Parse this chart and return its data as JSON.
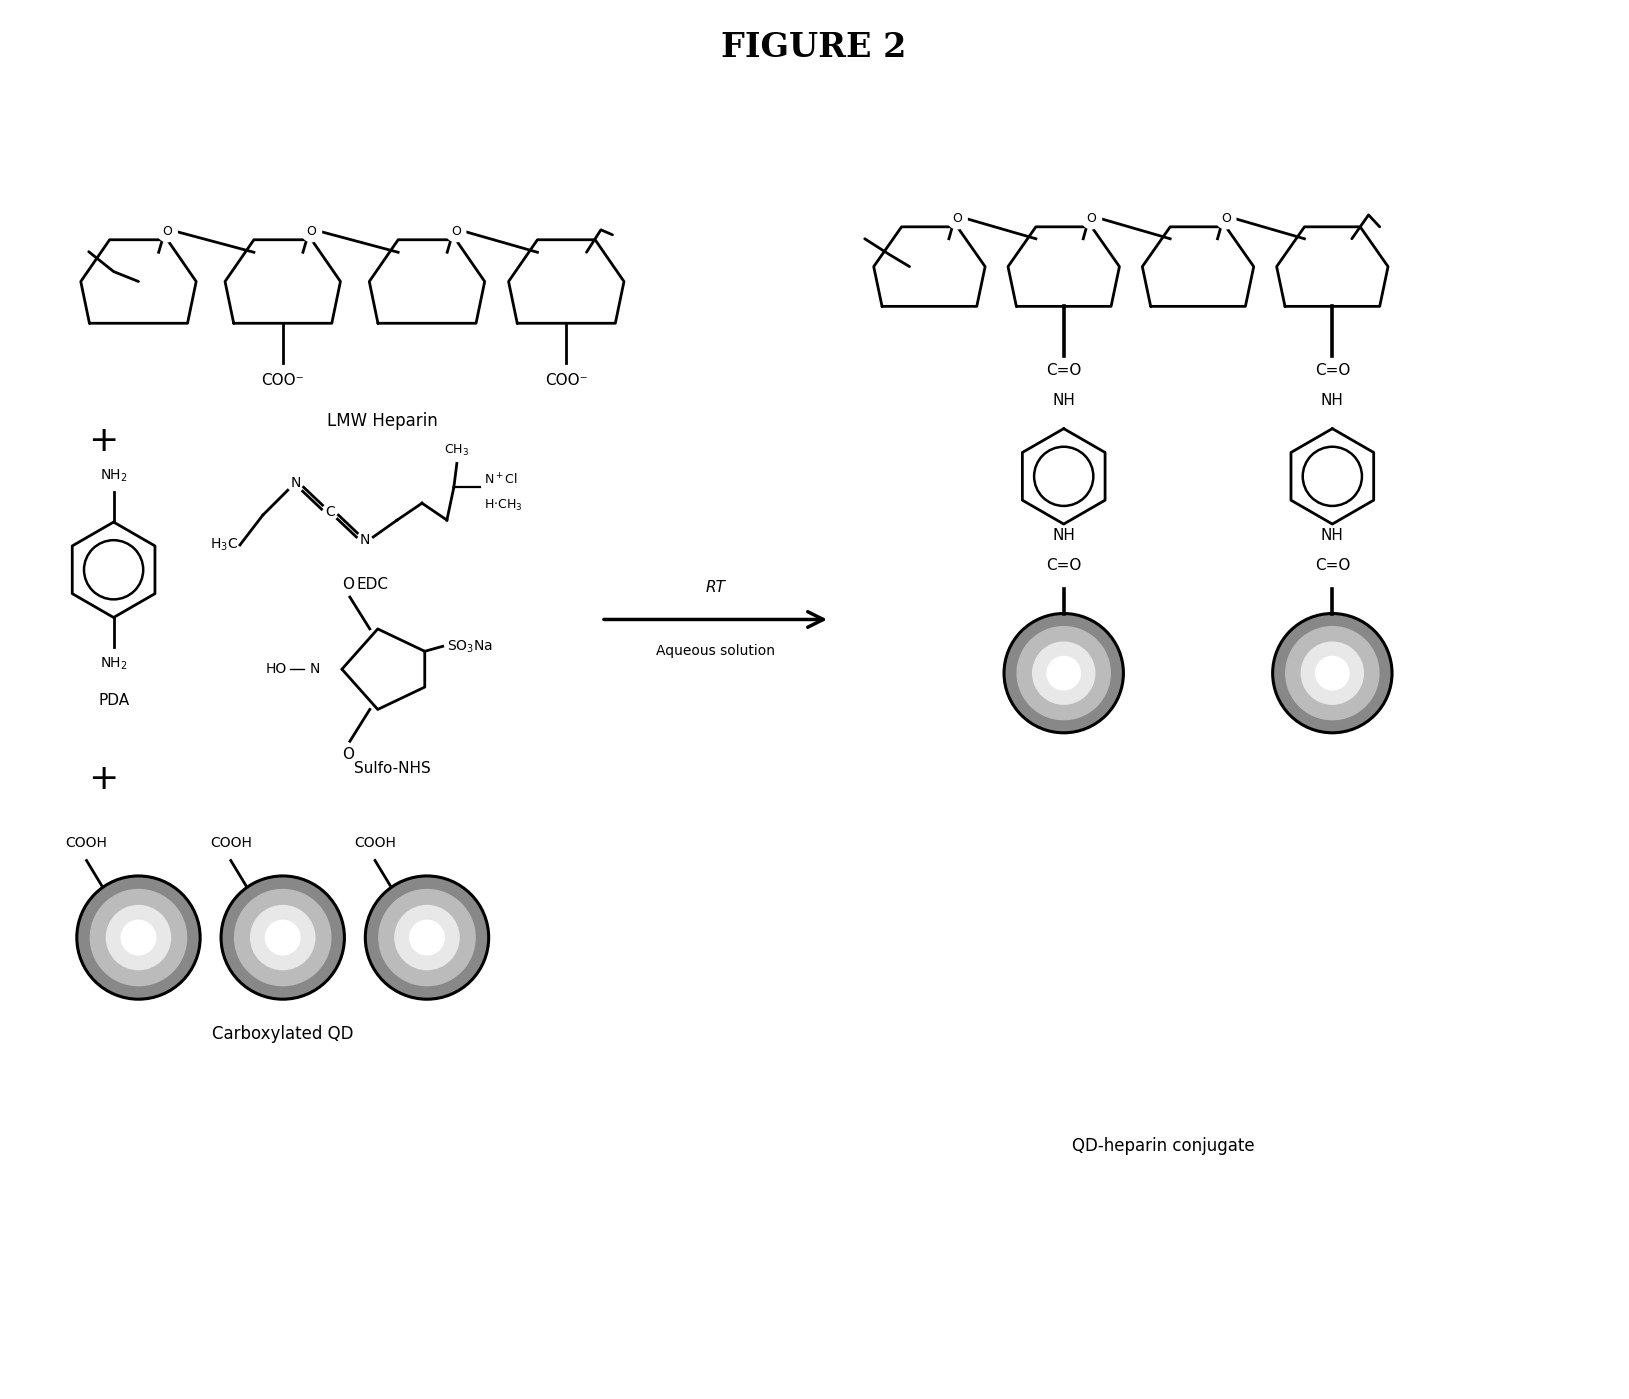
{
  "title": "FIGURE 2",
  "title_fontsize": 24,
  "title_fontweight": "bold",
  "bg_color": "#ffffff",
  "text_color": "#000000",
  "line_color": "#000000",
  "line_width": 2.0,
  "labels": {
    "lmw_heparin": "LMW Heparin",
    "pda": "PDA",
    "edc": "EDC",
    "sulfo_nhs": "Sulfo-NHS",
    "carboxylated_qd": "Carboxylated QD",
    "qd_heparin": "QD-heparin conjugate",
    "rt": "RT",
    "aqueous": "Aqueous solution",
    "coo_minus": "COO⁻",
    "cooh": "COOH",
    "nh2_top": "NH₂",
    "nh2_bot": "NH₂",
    "c_eq_o": "C=O",
    "nh": "NH",
    "ch3": "CH₃",
    "n_plus_cl": "N⁺Cl",
    "h_ch3": "H·CH₃",
    "so3na": "SO₃Na",
    "plus": "+",
    "o_bridge": "O"
  }
}
